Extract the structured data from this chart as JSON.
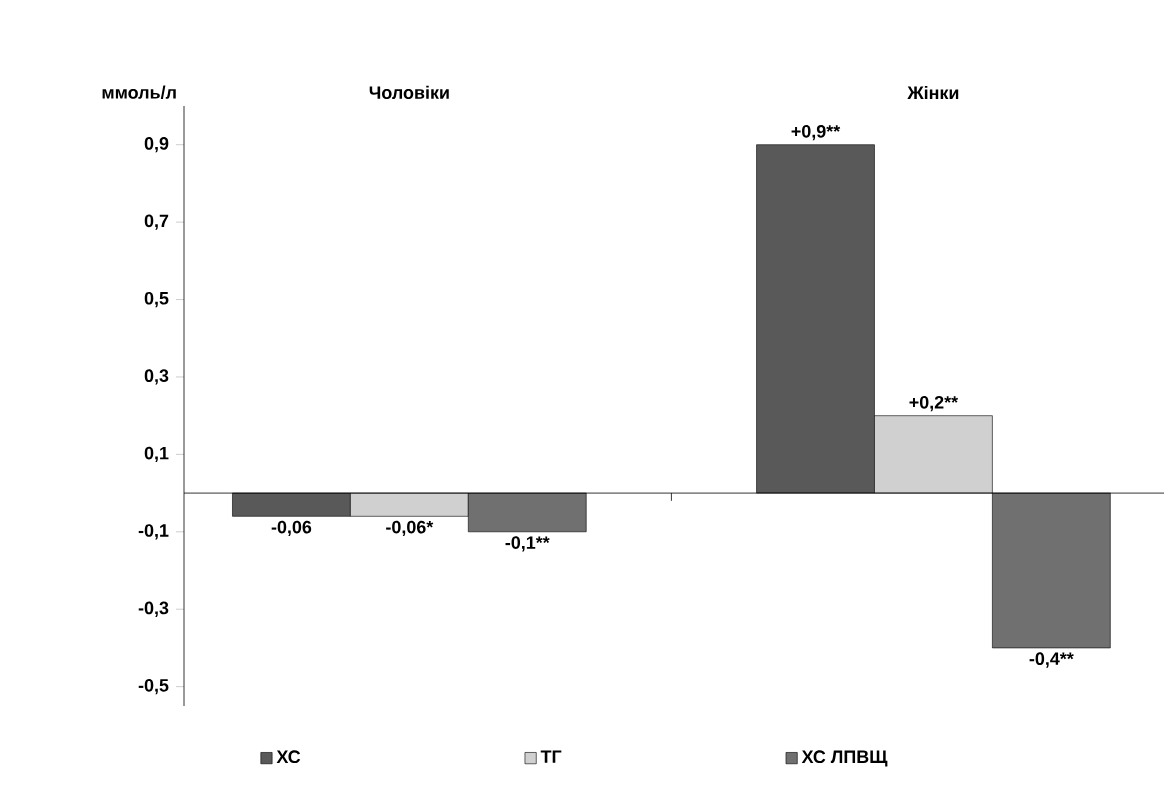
{
  "chart_data": {
    "type": "bar",
    "ylabel": "ммоль/л",
    "categories": [
      "Чоловіки",
      "Жінки"
    ],
    "series": [
      {
        "name": "ХС",
        "color": "#595959",
        "values": [
          -0.06,
          0.9
        ],
        "value_labels": [
          "-0,06",
          "+0,9**"
        ]
      },
      {
        "name": "ТГ",
        "color": "#d0d0d0",
        "values": [
          -0.06,
          0.2
        ],
        "value_labels": [
          "-0,06*",
          "+0,2**"
        ]
      },
      {
        "name": "ХС ЛПВЩ",
        "color": "#707070",
        "values": [
          -0.1,
          -0.4
        ],
        "value_labels": [
          "-0,1**",
          "-0,4**"
        ]
      }
    ],
    "ylim": [
      -0.55,
      1.0
    ],
    "yticks": [
      {
        "value": 0.9,
        "label": "0,9"
      },
      {
        "value": 0.7,
        "label": "0,7"
      },
      {
        "value": 0.5,
        "label": "0,5"
      },
      {
        "value": 0.3,
        "label": "0,3"
      },
      {
        "value": 0.1,
        "label": "0,1"
      },
      {
        "value": -0.1,
        "label": "-0,1"
      },
      {
        "value": -0.3,
        "label": "-0,3"
      },
      {
        "value": -0.5,
        "label": "-0,5"
      }
    ],
    "grid": false,
    "legend": "bottom"
  }
}
